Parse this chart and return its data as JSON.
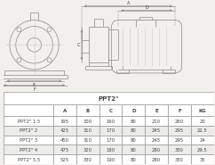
{
  "title": "PPT2\"",
  "columns": [
    "",
    "A",
    "B",
    "C",
    "D",
    "E",
    "F",
    "KG"
  ],
  "rows": [
    [
      "PPT2\" 1.5",
      "395",
      "300",
      "160",
      "80",
      "210",
      "260",
      "20"
    ],
    [
      "PPT2\" 2",
      "425",
      "310",
      "170",
      "80",
      "245",
      "295",
      "22.5"
    ],
    [
      "PPT2\" 3",
      "450",
      "310",
      "170",
      "80",
      "245",
      "295",
      "24"
    ],
    [
      "PPT2\" 4",
      "475",
      "320",
      "180",
      "80",
      "280",
      "330",
      "29.5"
    ],
    [
      "PPT2\" 5.5",
      "525",
      "330",
      "190",
      "80",
      "280",
      "330",
      "35"
    ]
  ],
  "bg_color": "#f2f0ed",
  "line_color": "#999999",
  "text_color": "#444444",
  "dim_color": "#777777"
}
